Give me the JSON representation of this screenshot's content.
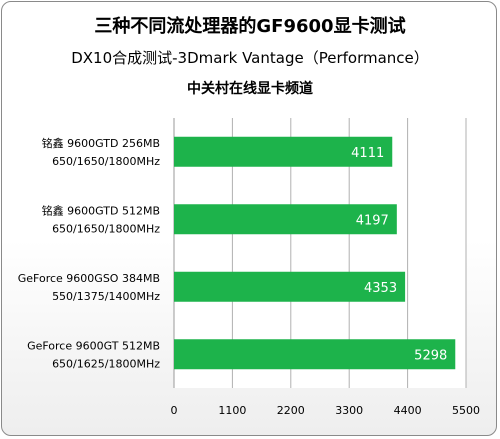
{
  "chart_data": {
    "type": "bar",
    "orientation": "horizontal",
    "title": "三种不同流处理器的GF9600显卡测试",
    "subtitle": "DX10合成测试-3Dmark Vantage（Performance）",
    "subtitle2": "中关村在线显卡频道",
    "categories": [
      [
        "铭鑫 9600GTD 256MB",
        "650/1650/1800MHz"
      ],
      [
        "铭鑫 9600GTD 512MB",
        "650/1650/1800MHz"
      ],
      [
        "GeForce 9600GSO 384MB",
        "550/1375/1400MHz"
      ],
      [
        "GeForce 9600GT 512MB",
        "650/1625/1800MHz"
      ]
    ],
    "values": [
      4111,
      4197,
      4353,
      5298
    ],
    "xlim": [
      0,
      5500
    ],
    "xticks": [
      "0",
      "1100",
      "2200",
      "3300",
      "4400",
      "5500"
    ],
    "grid": true,
    "bar_color": "#1db34b",
    "label_color": "#ffffff"
  }
}
